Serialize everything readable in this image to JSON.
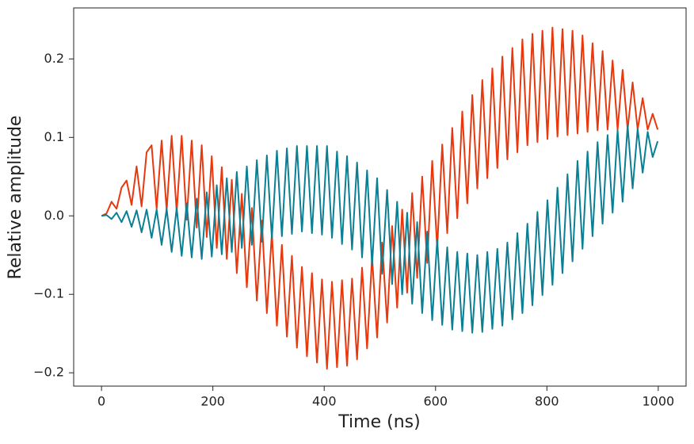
{
  "chart_data": {
    "type": "line",
    "xlabel": "Time (ns)",
    "ylabel": "Relative amplitude",
    "x": [
      0,
      9,
      18,
      27,
      36,
      45,
      54,
      63,
      72,
      81,
      90,
      99,
      108,
      117,
      126,
      135,
      144,
      153,
      162,
      171,
      180,
      189,
      198,
      207,
      216,
      225,
      234,
      243,
      252,
      261,
      270,
      279,
      288,
      297,
      306,
      315,
      324,
      333,
      342,
      351,
      360,
      369,
      378,
      387,
      396,
      405,
      414,
      423,
      432,
      441,
      450,
      459,
      468,
      477,
      486,
      495,
      504,
      513,
      522,
      531,
      540,
      549,
      558,
      567,
      576,
      585,
      594,
      603,
      612,
      621,
      630,
      639,
      648,
      657,
      666,
      675,
      684,
      693,
      702,
      711,
      720,
      729,
      738,
      747,
      756,
      765,
      774,
      783,
      792,
      801,
      810,
      819,
      828,
      837,
      846,
      855,
      864,
      873,
      882,
      891,
      900,
      909,
      918,
      927,
      936,
      945,
      954,
      963,
      972,
      981,
      990,
      999
    ],
    "series": [
      {
        "color": "#e8380d",
        "values": [
          0,
          0.003,
          0.018,
          0.009,
          0.036,
          0.045,
          0.014,
          0.063,
          0.012,
          0.081,
          0.09,
          0.009,
          0.096,
          0.007,
          0.102,
          0.005,
          0.102,
          -0.005,
          0.096,
          -0.015,
          0.09,
          -0.027,
          0.076,
          -0.041,
          0.062,
          -0.055,
          0.046,
          -0.073,
          0.028,
          -0.091,
          0.01,
          -0.108,
          -0.006,
          -0.124,
          -0.022,
          -0.14,
          -0.037,
          -0.154,
          -0.051,
          -0.168,
          -0.065,
          -0.179,
          -0.073,
          -0.187,
          -0.081,
          -0.195,
          -0.084,
          -0.193,
          -0.082,
          -0.191,
          -0.08,
          -0.183,
          -0.066,
          -0.169,
          -0.052,
          -0.155,
          -0.034,
          -0.136,
          -0.013,
          -0.117,
          0.008,
          -0.098,
          0.029,
          -0.079,
          0.05,
          -0.06,
          0.07,
          -0.041,
          0.091,
          -0.022,
          0.112,
          -0.003,
          0.133,
          0.016,
          0.154,
          0.035,
          0.173,
          0.048,
          0.188,
          0.061,
          0.203,
          0.072,
          0.214,
          0.081,
          0.225,
          0.09,
          0.232,
          0.094,
          0.236,
          0.098,
          0.24,
          0.101,
          0.238,
          0.103,
          0.236,
          0.105,
          0.23,
          0.107,
          0.22,
          0.109,
          0.21,
          0.11,
          0.198,
          0.11,
          0.186,
          0.11,
          0.17,
          0.11,
          0.15,
          0.11,
          0.13,
          0.11
        ]
      },
      {
        "color": "#0b7f93",
        "values": [
          0,
          0.001,
          -0.004,
          0.004,
          -0.008,
          0.006,
          -0.014,
          0.007,
          -0.021,
          0.008,
          -0.028,
          0.008,
          -0.037,
          0.009,
          -0.046,
          0.01,
          -0.051,
          0.016,
          -0.053,
          0.022,
          -0.055,
          0.03,
          -0.052,
          0.039,
          -0.049,
          0.048,
          -0.046,
          0.056,
          -0.041,
          0.063,
          -0.037,
          0.071,
          -0.033,
          0.077,
          -0.029,
          0.083,
          -0.026,
          0.086,
          -0.023,
          0.089,
          -0.02,
          0.089,
          -0.022,
          0.089,
          -0.024,
          0.089,
          -0.028,
          0.082,
          -0.036,
          0.076,
          -0.043,
          0.068,
          -0.053,
          0.058,
          -0.063,
          0.048,
          -0.074,
          0.033,
          -0.087,
          0.018,
          -0.1,
          0.004,
          -0.112,
          -0.008,
          -0.124,
          -0.02,
          -0.133,
          -0.03,
          -0.139,
          -0.04,
          -0.145,
          -0.046,
          -0.147,
          -0.048,
          -0.149,
          -0.05,
          -0.148,
          -0.046,
          -0.144,
          -0.042,
          -0.14,
          -0.034,
          -0.132,
          -0.022,
          -0.124,
          -0.01,
          -0.114,
          0.005,
          -0.101,
          0.02,
          -0.088,
          0.036,
          -0.073,
          0.053,
          -0.058,
          0.07,
          -0.042,
          0.082,
          -0.026,
          0.094,
          -0.01,
          0.103,
          0.004,
          0.109,
          0.018,
          0.115,
          0.035,
          0.111,
          0.055,
          0.107,
          0.075,
          0.095
        ]
      }
    ],
    "xlim": [
      -50,
      1050
    ],
    "xticks": [
      0,
      200,
      400,
      600,
      800,
      1000
    ],
    "ylim": [
      -0.217,
      0.265
    ],
    "yticks": [
      {
        "value": -0.2,
        "label": "−0.2"
      },
      {
        "value": -0.1,
        "label": "−0.1"
      },
      {
        "value": 0,
        "label": "0.0"
      },
      0.1,
      0.2
    ],
    "grid": false
  }
}
